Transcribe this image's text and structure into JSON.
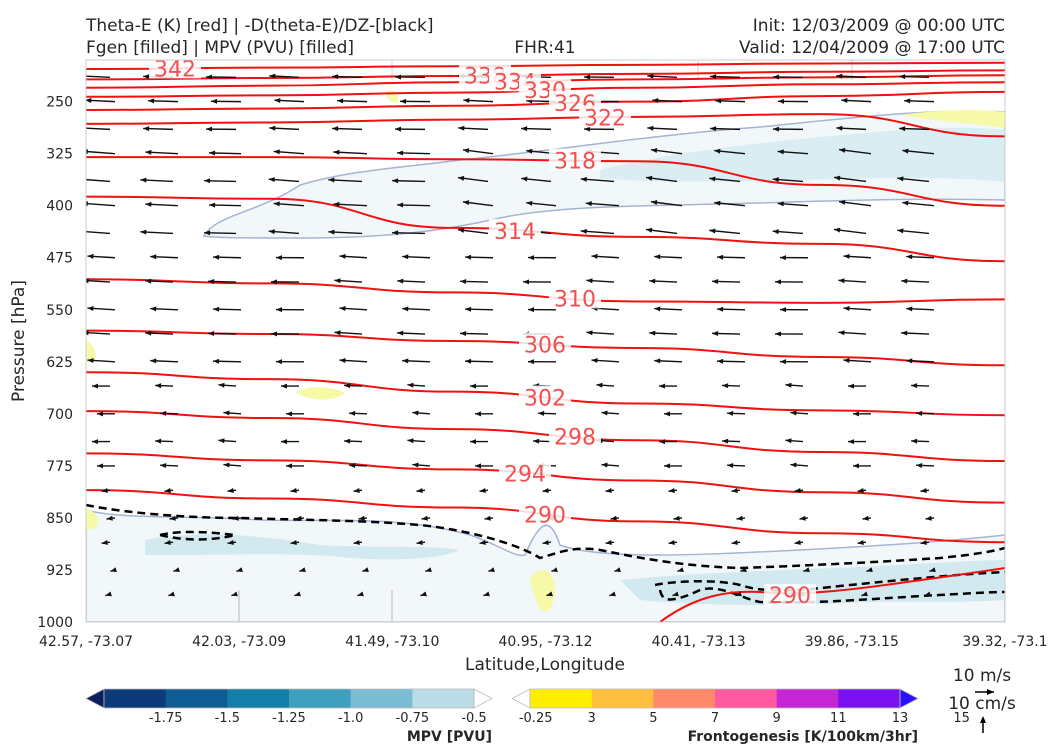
{
  "header": {
    "left_line1": "Theta-E (K) [red] | -D(theta-E)/DZ-[black]",
    "left_line2": "Fgen [filled] | MPV (PVU) [filled]",
    "center": "FHR:41",
    "right_line1": "Init: 12/03/2009 @ 00:00 UTC",
    "right_line2": "Valid: 12/04/2009 @ 17:00 UTC"
  },
  "chart_data": {
    "type": "cross-section",
    "xlabel": "Latitude,Longitude",
    "ylabel": "Pressure [hPa]",
    "x_ticks": [
      "42.57, -73.07",
      "42.03, -73.09",
      "41.49, -73.10",
      "40.95, -73.12",
      "40.41, -73.13",
      "39.86, -73.15",
      "39.32, -73.1"
    ],
    "y_ticks": [
      250,
      325,
      400,
      475,
      550,
      625,
      700,
      775,
      850,
      925,
      1000
    ],
    "ylim": [
      1000,
      190
    ],
    "theta_e_levels": [
      {
        "label": "342",
        "p": [
          203,
          201,
          199,
          197,
          195,
          194
        ]
      },
      {
        "label": "338",
        "p": [
          218,
          216,
          213,
          210,
          207,
          205
        ]
      },
      {
        "label": "334",
        "p": [
          230,
          227,
          222,
          218,
          215,
          212
        ]
      },
      {
        "label": "330",
        "p": [
          243,
          241,
          237,
          230,
          225,
          222
        ]
      },
      {
        "label": "326",
        "p": [
          262,
          260,
          256,
          250,
          242,
          236
        ]
      },
      {
        "label": "322",
        "p": [
          282,
          280,
          276,
          272,
          268,
          300
        ]
      },
      {
        "label": "318",
        "p": [
          330,
          330,
          333,
          336,
          370,
          400
        ]
      },
      {
        "label": "314",
        "p": [
          387,
          390,
          432,
          445,
          455,
          480
        ]
      },
      {
        "label": "310",
        "p": [
          506,
          512,
          525,
          538,
          540,
          535
        ]
      },
      {
        "label": "306",
        "p": [
          580,
          585,
          595,
          605,
          618,
          630
        ]
      },
      {
        "label": "302",
        "p": [
          640,
          650,
          668,
          685,
          695,
          702
        ]
      },
      {
        "label": "298",
        "p": [
          696,
          706,
          722,
          738,
          755,
          768
        ]
      },
      {
        "label": "294",
        "p": [
          757,
          767,
          780,
          796,
          813,
          828
        ]
      },
      {
        "label": "290",
        "p": [
          810,
          822,
          835,
          855,
          872,
          885
        ]
      }
    ],
    "wind_reference": {
      "label_u": "10 m/s",
      "label_w": "10 cm/s"
    },
    "colorbars": [
      {
        "title": "MPV [PVU]",
        "labels": [
          "-1.75",
          "-1.5",
          "-1.25",
          "-1.0",
          "-0.75",
          "-0.5",
          "-0.25"
        ],
        "colors": [
          "#0b1f5e",
          "#0d3b7a",
          "#0f5b93",
          "#137ea8",
          "#3e9fbf",
          "#7bbdd3",
          "#b9dce6",
          "#ffffff"
        ]
      },
      {
        "title": "Frontogenesis [K/100km/3hr]",
        "labels": [
          "3",
          "5",
          "7",
          "9",
          "11",
          "13",
          "15"
        ],
        "colors": [
          "#ffffff",
          "#ffee00",
          "#ffc040",
          "#ff8a6a",
          "#ff5aa0",
          "#c426d4",
          "#7a10f0",
          "#2a10ff"
        ]
      }
    ]
  }
}
